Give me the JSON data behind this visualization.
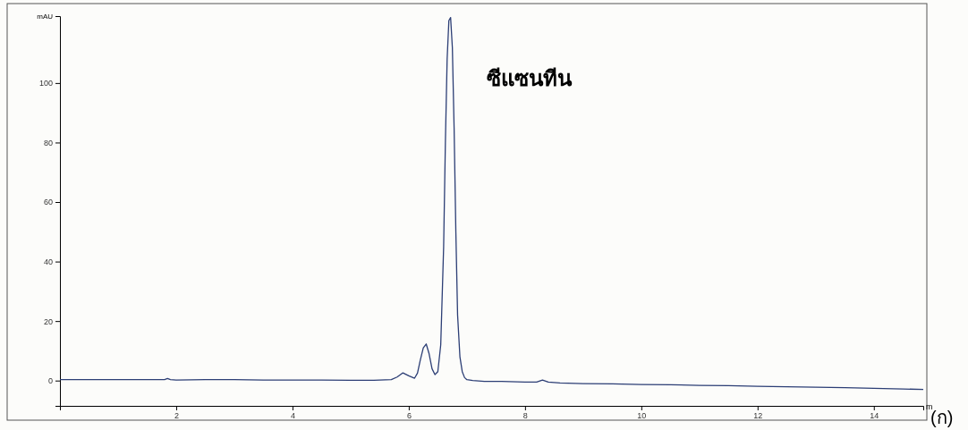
{
  "chart_data": {
    "type": "line",
    "ylabel": "mAU",
    "xlabel": "m",
    "annotations": [
      {
        "text": "ซีแซนทีน",
        "x": 6.72,
        "y": 122
      },
      "(ก)"
    ],
    "x": [
      0,
      0.5,
      1,
      1.5,
      1.8,
      1.85,
      1.9,
      2,
      2.5,
      3,
      3.5,
      4,
      4.5,
      5,
      5.4,
      5.7,
      5.8,
      5.9,
      6,
      6.1,
      6.15,
      6.2,
      6.25,
      6.3,
      6.35,
      6.4,
      6.45,
      6.5,
      6.55,
      6.6,
      6.63,
      6.66,
      6.69,
      6.72,
      6.75,
      6.78,
      6.81,
      6.84,
      6.88,
      6.92,
      6.96,
      7.0,
      7.1,
      7.3,
      7.6,
      8,
      8.2,
      8.3,
      8.4,
      8.6,
      9,
      9.5,
      10,
      10.5,
      11,
      11.5,
      12,
      12.5,
      13,
      13.5,
      14,
      14.5,
      14.85
    ],
    "series": [
      {
        "color": "#2c3e75",
        "values": [
          0.3,
          0.3,
          0.3,
          0.3,
          0.3,
          0.7,
          0.3,
          0.2,
          0.3,
          0.3,
          0.2,
          0.2,
          0.2,
          0.1,
          0.1,
          0.3,
          1.2,
          2.6,
          1.6,
          0.8,
          2.5,
          7,
          11,
          12.3,
          9,
          4,
          2,
          3,
          12,
          45,
          80,
          108,
          121,
          122,
          112,
          85,
          50,
          22,
          8,
          3,
          1,
          0.3,
          0,
          -0.3,
          -0.3,
          -0.5,
          -0.5,
          0.2,
          -0.5,
          -0.8,
          -1,
          -1.1,
          -1.3,
          -1.4,
          -1.6,
          -1.7,
          -1.9,
          -2.1,
          -2.2,
          -2.4,
          -2.6,
          -2.8,
          -3
        ]
      }
    ],
    "xlim": [
      0,
      14.85
    ],
    "ylim": [
      -8.5,
      122.5
    ],
    "xticks": [
      2,
      4,
      6,
      8,
      10,
      12,
      14
    ],
    "yticks": [
      0,
      20,
      40,
      60,
      80,
      100
    ],
    "grid": false,
    "marker": "none",
    "line_style": "solid"
  }
}
